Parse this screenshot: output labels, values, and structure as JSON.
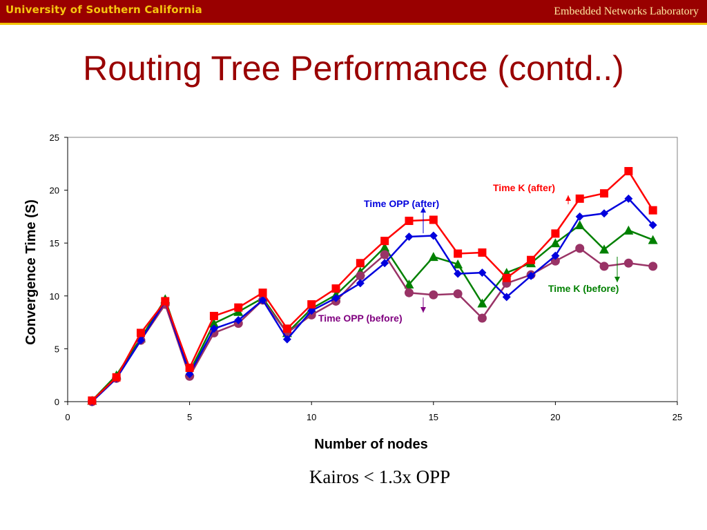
{
  "header": {
    "logo_text": "University of Southern California",
    "lab_name": "Embedded Networks Laboratory"
  },
  "slide": {
    "title": "Routing Tree Performance (contd..)",
    "caption": "Kairos < 1.3x OPP"
  },
  "colors": {
    "header_bg": "#990000",
    "title": "#990000",
    "time_k_after": "#ff0000",
    "time_opp_after": "#0000dd",
    "time_k_before": "#008000",
    "time_opp_before": "#993366"
  },
  "chart_data": {
    "type": "line",
    "xlabel": "Number of nodes",
    "ylabel": "Convergence Time (S)",
    "xlim": [
      0,
      25
    ],
    "ylim": [
      0,
      25
    ],
    "xticks": [
      0,
      5,
      10,
      15,
      20,
      25
    ],
    "yticks": [
      0,
      5,
      10,
      15,
      20,
      25
    ],
    "grid": false,
    "x": [
      1,
      2,
      3,
      4,
      5,
      6,
      7,
      8,
      9,
      10,
      11,
      12,
      13,
      14,
      15,
      16,
      17,
      18,
      19,
      20,
      21,
      22,
      23,
      24
    ],
    "series": [
      {
        "name": "Time K (before)",
        "color": "#008000",
        "marker": "triangle",
        "values": [
          0.1,
          2.5,
          6.0,
          9.7,
          2.8,
          7.4,
          8.5,
          9.8,
          6.5,
          8.8,
          10.1,
          12.3,
          14.6,
          11.1,
          13.7,
          13.0,
          9.3,
          12.2,
          13.1,
          15.0,
          16.7,
          14.4,
          16.2,
          15.3
        ]
      },
      {
        "name": "Time OPP (before)",
        "color": "#993366",
        "marker": "circle",
        "values": [
          0.0,
          2.2,
          5.8,
          9.2,
          2.4,
          6.5,
          7.4,
          9.6,
          6.5,
          8.2,
          9.5,
          11.9,
          13.9,
          10.3,
          10.1,
          10.2,
          7.9,
          11.2,
          12.0,
          13.3,
          14.5,
          12.8,
          13.1,
          12.8
        ]
      },
      {
        "name": "Time OPP (after)",
        "color": "#0000dd",
        "marker": "diamond",
        "values": [
          0.0,
          2.2,
          5.8,
          9.5,
          2.6,
          6.9,
          7.7,
          9.6,
          5.9,
          8.6,
          9.8,
          11.2,
          13.1,
          15.6,
          15.7,
          12.1,
          12.2,
          9.9,
          11.9,
          13.8,
          17.5,
          17.8,
          19.2,
          16.7
        ]
      },
      {
        "name": "Time K (after)",
        "color": "#ff0000",
        "marker": "square",
        "values": [
          0.1,
          2.3,
          6.5,
          9.5,
          3.2,
          8.1,
          8.9,
          10.3,
          6.9,
          9.2,
          10.7,
          13.1,
          15.2,
          17.1,
          17.2,
          14.0,
          14.1,
          11.7,
          13.4,
          15.9,
          19.2,
          19.7,
          21.8,
          18.1
        ]
      }
    ],
    "annotations": [
      {
        "text": "Time K (after)",
        "color": "#ff0000"
      },
      {
        "text": "Time OPP (after)",
        "color": "#0000dd"
      },
      {
        "text": "Time K (before)",
        "color": "#008000"
      },
      {
        "text": "Time OPP (before)",
        "color": "#800080"
      }
    ]
  }
}
